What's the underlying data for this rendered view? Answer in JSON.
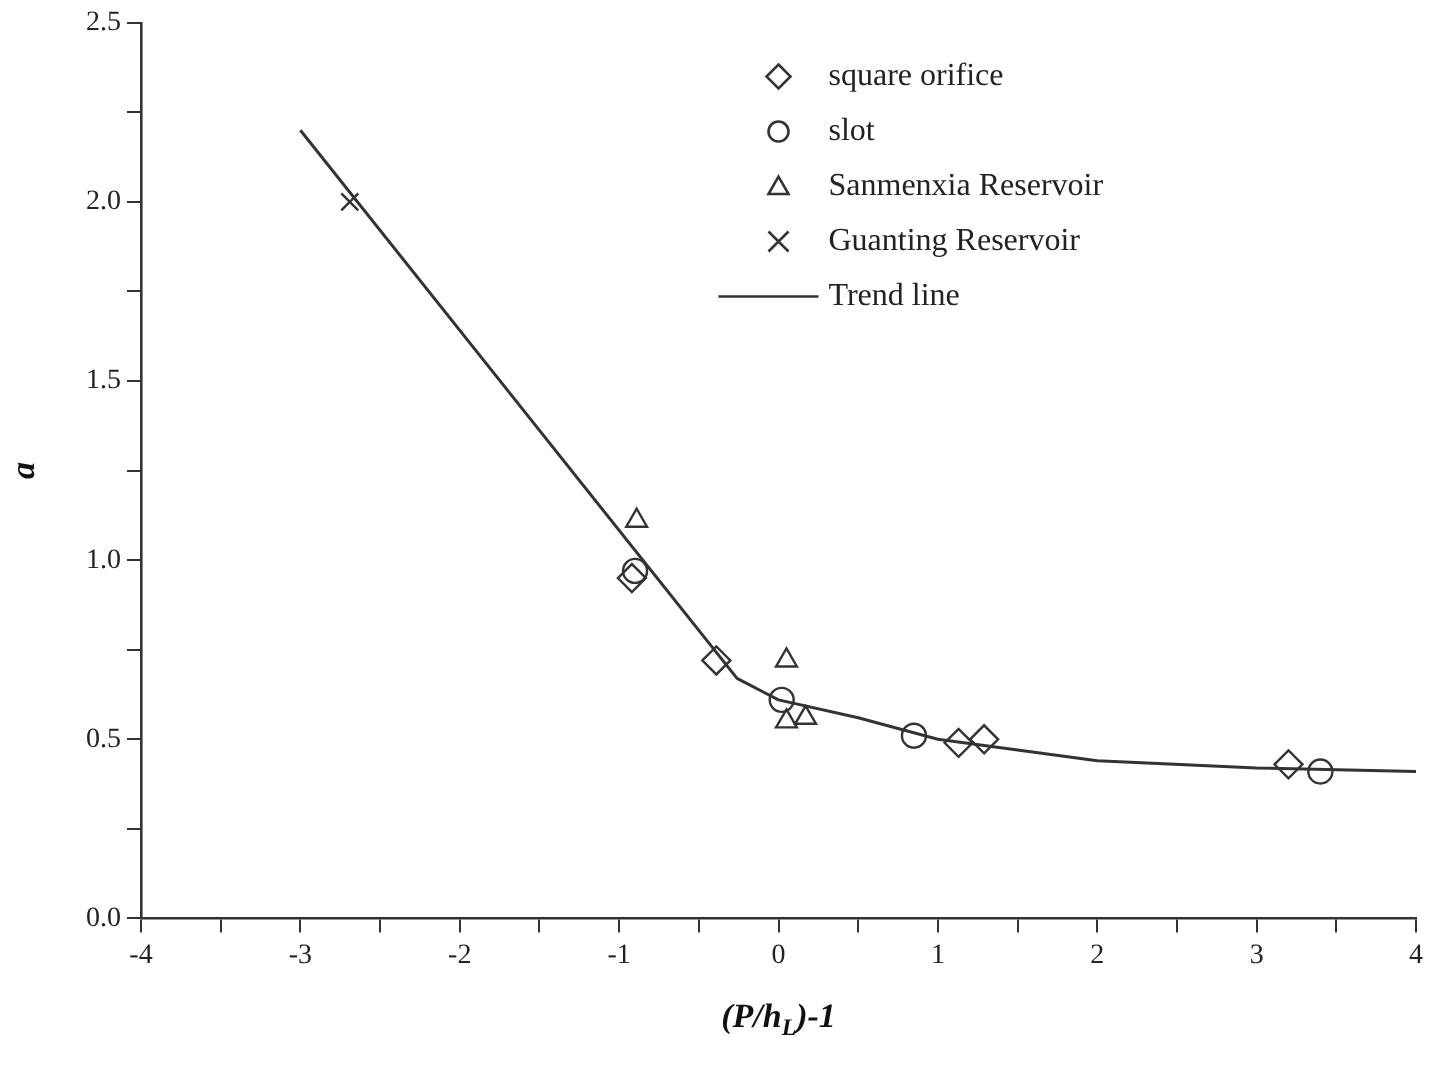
{
  "chart_data": {
    "type": "scatter",
    "xlabel": "(P/h$_{L}$)-1",
    "ylabel": "a",
    "xlim": [
      -4,
      4
    ],
    "ylim": [
      0,
      2.5
    ],
    "xticks": [
      -4,
      {
        "value": -3.5,
        "label": null
      },
      -3,
      {
        "value": -2.5,
        "label": null
      },
      -2,
      {
        "value": -1.5,
        "label": null
      },
      -1,
      {
        "value": -0.5,
        "label": null
      },
      0,
      {
        "value": 0.5,
        "label": null
      },
      1,
      {
        "value": 1.5,
        "label": null
      },
      2,
      {
        "value": 2.5,
        "label": null
      },
      3,
      {
        "value": 3.5,
        "label": null
      },
      4
    ],
    "yticks": [
      {
        "value": 0,
        "label": "0.0"
      },
      {
        "value": 0.25,
        "label": null
      },
      {
        "value": 0.5,
        "label": "0.5"
      },
      {
        "value": 0.75,
        "label": null
      },
      {
        "value": 1,
        "label": "1.0"
      },
      {
        "value": 1.25,
        "label": null
      },
      {
        "value": 1.5,
        "label": "1.5"
      },
      {
        "value": 1.75,
        "label": null
      },
      {
        "value": 2,
        "label": "2.0"
      },
      {
        "value": 2.25,
        "label": null
      },
      {
        "value": 2.5,
        "label": "2.5"
      }
    ],
    "grid": false,
    "legend": "top right",
    "series": [
      {
        "name": "square orifice",
        "type": "scatter",
        "marker": "diamond",
        "color": "#333333",
        "x": [
          -0.92,
          -0.39,
          1.13,
          1.29,
          3.2
        ],
        "values": [
          0.95,
          0.72,
          0.49,
          0.5,
          0.43
        ]
      },
      {
        "name": "slot",
        "type": "scatter",
        "marker": "circle",
        "color": "#333333",
        "x": [
          -0.9,
          0.02,
          0.85,
          3.4
        ],
        "values": [
          0.97,
          0.61,
          0.51,
          0.41
        ]
      },
      {
        "name": "Sanmenxia Reservoir",
        "type": "scatter",
        "marker": "triangle",
        "color": "#333333",
        "x": [
          -0.89,
          0.05,
          0.05,
          0.17
        ],
        "values": [
          1.11,
          0.72,
          0.55,
          0.56
        ]
      },
      {
        "name": "Guanting Reservoir",
        "type": "scatter",
        "marker": "cross",
        "color": "#333333",
        "x": [
          -2.69
        ],
        "values": [
          2.0
        ]
      },
      {
        "name": "Trend line",
        "type": "line",
        "marker": "none",
        "line_style": "solid",
        "color": "#333333",
        "x": [
          -3,
          -0.26,
          0,
          0.5,
          1,
          1.5,
          2,
          3,
          4
        ],
        "values": [
          2.2,
          0.67,
          0.61,
          0.56,
          0.5,
          0.47,
          0.44,
          0.42,
          0.41
        ]
      }
    ]
  }
}
